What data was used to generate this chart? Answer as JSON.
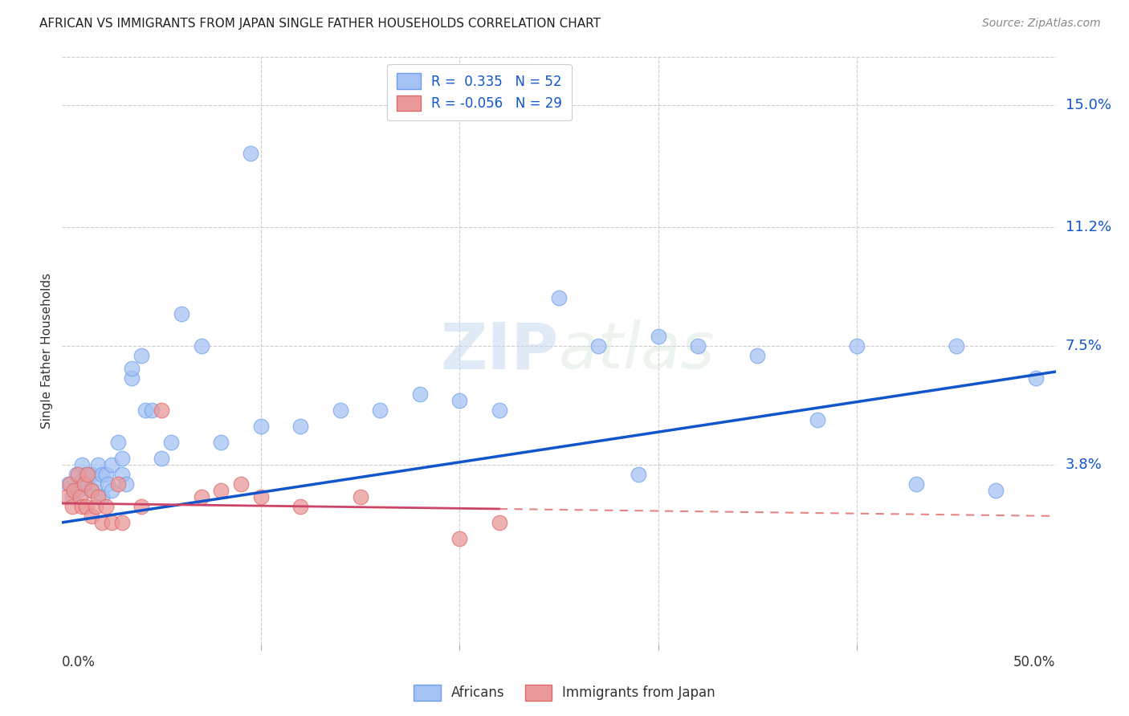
{
  "title": "AFRICAN VS IMMIGRANTS FROM JAPAN SINGLE FATHER HOUSEHOLDS CORRELATION CHART",
  "source": "Source: ZipAtlas.com",
  "ylabel": "Single Father Households",
  "ytick_values": [
    3.8,
    7.5,
    11.2,
    15.0
  ],
  "xmin": 0.0,
  "xmax": 50.0,
  "ymin": -1.8,
  "ymax": 16.5,
  "legend_blue_R": "0.335",
  "legend_blue_N": "52",
  "legend_pink_R": "-0.056",
  "legend_pink_N": "29",
  "blue_scatter_color": "#a4c2f4",
  "blue_edge_color": "#6d9eeb",
  "pink_scatter_color": "#ea9999",
  "pink_edge_color": "#e06666",
  "line_blue_color": "#1155cc",
  "line_pink_solid_color": "#cc4466",
  "line_pink_dash_color": "#e06666",
  "africans_x": [
    0.3,
    0.5,
    0.7,
    0.8,
    1.0,
    1.0,
    1.2,
    1.3,
    1.5,
    1.5,
    1.7,
    1.8,
    2.0,
    2.0,
    2.2,
    2.3,
    2.5,
    2.5,
    2.8,
    3.0,
    3.0,
    3.2,
    3.5,
    3.5,
    4.0,
    4.2,
    4.5,
    5.0,
    5.5,
    6.0,
    7.0,
    8.0,
    9.5,
    10.0,
    12.0,
    14.0,
    16.0,
    18.0,
    20.0,
    22.0,
    25.0,
    27.0,
    29.0,
    30.0,
    32.0,
    35.0,
    38.0,
    40.0,
    43.0,
    45.0,
    47.0,
    49.0
  ],
  "africans_y": [
    3.2,
    2.8,
    3.5,
    3.0,
    3.3,
    3.8,
    3.5,
    3.2,
    3.0,
    3.5,
    3.2,
    3.8,
    2.8,
    3.5,
    3.5,
    3.2,
    3.8,
    3.0,
    4.5,
    3.5,
    4.0,
    3.2,
    6.5,
    6.8,
    7.2,
    5.5,
    5.5,
    4.0,
    4.5,
    8.5,
    7.5,
    4.5,
    13.5,
    5.0,
    5.0,
    5.5,
    5.5,
    6.0,
    5.8,
    5.5,
    9.0,
    7.5,
    3.5,
    7.8,
    7.5,
    7.2,
    5.2,
    7.5,
    3.2,
    7.5,
    3.0,
    6.5
  ],
  "japan_x": [
    0.2,
    0.4,
    0.5,
    0.6,
    0.8,
    0.9,
    1.0,
    1.1,
    1.2,
    1.3,
    1.5,
    1.5,
    1.7,
    1.8,
    2.0,
    2.2,
    2.5,
    2.8,
    3.0,
    4.0,
    5.0,
    7.0,
    8.0,
    9.0,
    10.0,
    12.0,
    15.0,
    20.0,
    22.0
  ],
  "japan_y": [
    2.8,
    3.2,
    2.5,
    3.0,
    3.5,
    2.8,
    2.5,
    3.2,
    2.5,
    3.5,
    2.2,
    3.0,
    2.5,
    2.8,
    2.0,
    2.5,
    2.0,
    3.2,
    2.0,
    2.5,
    5.5,
    2.8,
    3.0,
    3.2,
    2.8,
    2.5,
    2.8,
    1.5,
    2.0
  ],
  "blue_intercept": 2.0,
  "blue_slope": 0.094,
  "pink_intercept": 2.6,
  "pink_slope": -0.008,
  "pink_solid_xmax": 22.0,
  "background_color": "#ffffff",
  "grid_color": "#cccccc",
  "watermark": "ZIPatlas"
}
